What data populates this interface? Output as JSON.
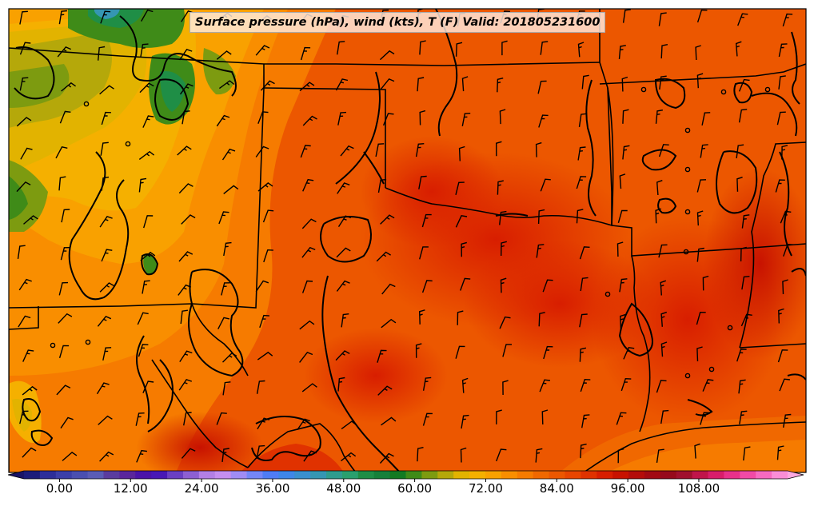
{
  "title": "Surface pressure (hPa), wind (kts), T (F) Valid: 201805231600",
  "colorbar": {
    "tick_labels": [
      "0.00",
      "12.00",
      "24.00",
      "36.00",
      "48.00",
      "60.00",
      "72.00",
      "84.00",
      "96.00",
      "108.00"
    ],
    "tick_values": [
      0,
      12,
      24,
      36,
      48,
      60,
      72,
      84,
      96,
      108
    ],
    "min": -6,
    "max": 123,
    "step": 3,
    "colors": [
      "#1c1c7a",
      "#2d2e99",
      "#3c3fa8",
      "#4a4fb0",
      "#5a5cb5",
      "#5a3c9e",
      "#5a259c",
      "#4b13a8",
      "#4818b5",
      "#6a3fc2",
      "#8d5fd2",
      "#b37fe6",
      "#c58ef0",
      "#a08cf5",
      "#7486f7",
      "#4f7cf5",
      "#3f86e8",
      "#3a8fcf",
      "#3596b3",
      "#2f9c8e",
      "#2aa06e",
      "#1f8e46",
      "#17803a",
      "#127a22",
      "#3f8b18",
      "#7d9b10",
      "#b5a80a",
      "#e2b300",
      "#f5b000",
      "#f9a100",
      "#f98e00",
      "#f67b00",
      "#f06800",
      "#ec5700",
      "#e84500",
      "#e03200",
      "#d81e00",
      "#c81200",
      "#b40d0a",
      "#a20a12",
      "#960a1c",
      "#a0102e",
      "#c0144a",
      "#d81d6a",
      "#e8308a",
      "#f24aa6",
      "#f76ac0",
      "#fa8dd6"
    ]
  }
}
